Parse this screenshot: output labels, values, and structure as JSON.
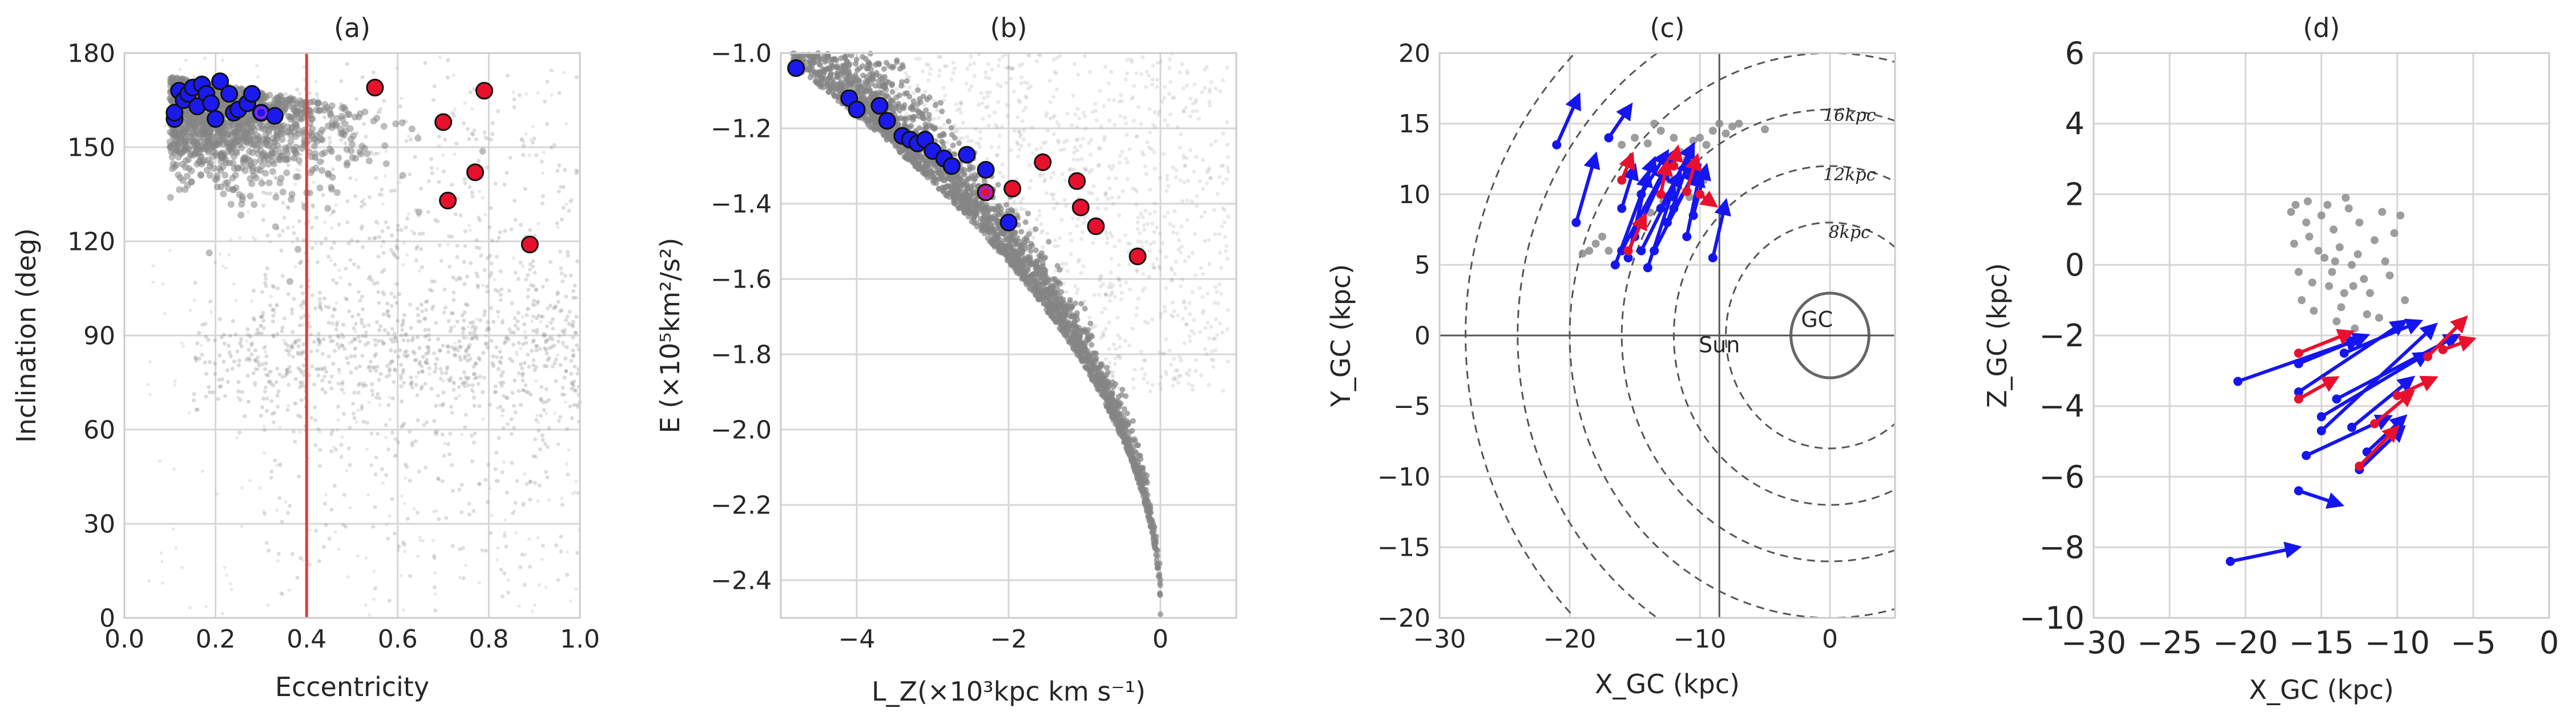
{
  "figure": {
    "description_colors": {
      "background": "#ffffff",
      "grid": "#d3d3d3",
      "cloud": "#808080",
      "blue": "#1515f0",
      "red": "#dc143c",
      "vline": "#e03c3c"
    }
  },
  "chart_data": [
    {
      "id": "a",
      "type": "scatter",
      "title": "(a)",
      "xlabel": "Eccentricity",
      "ylabel": "Inclination (deg)",
      "xlim": [
        0.0,
        1.0
      ],
      "ylim": [
        0,
        180
      ],
      "xticks": [
        "0.0",
        "0.2",
        "0.4",
        "0.6",
        "0.8",
        "1.0"
      ],
      "xtick_values": [
        0.0,
        0.2,
        0.4,
        0.6,
        0.8,
        1.0
      ],
      "yticks": [
        "0",
        "30",
        "60",
        "90",
        "120",
        "150",
        "180"
      ],
      "ytick_values": [
        0,
        30,
        60,
        90,
        120,
        150,
        180
      ],
      "vline": 0.4,
      "series": [
        {
          "name": "blue",
          "points": [
            [
              0.11,
              159
            ],
            [
              0.11,
              161
            ],
            [
              0.12,
              168
            ],
            [
              0.13,
              165
            ],
            [
              0.14,
              167
            ],
            [
              0.15,
              169
            ],
            [
              0.16,
              163
            ],
            [
              0.17,
              170
            ],
            [
              0.18,
              167
            ],
            [
              0.19,
              164
            ],
            [
              0.2,
              159
            ],
            [
              0.21,
              171
            ],
            [
              0.23,
              167
            ],
            [
              0.24,
              161
            ],
            [
              0.25,
              162
            ],
            [
              0.27,
              164
            ],
            [
              0.28,
              167
            ],
            [
              0.3,
              161
            ],
            [
              0.33,
              160
            ]
          ]
        },
        {
          "name": "red",
          "points": [
            [
              0.55,
              169
            ],
            [
              0.7,
              158
            ],
            [
              0.71,
              133
            ],
            [
              0.77,
              142
            ],
            [
              0.79,
              168
            ],
            [
              0.89,
              119
            ]
          ]
        },
        {
          "name": "purple",
          "points": [
            [
              0.3,
              161
            ]
          ]
        }
      ]
    },
    {
      "id": "b",
      "type": "scatter",
      "title": "(b)",
      "xlabel": "L_Z(×10³kpc km s⁻¹)",
      "ylabel": "E (×10⁵km²/s²)",
      "xlim": [
        -5,
        1
      ],
      "ylim": [
        -2.5,
        -1.0
      ],
      "xticks": [
        "−4",
        "−2",
        "0"
      ],
      "xtick_values": [
        -4,
        -2,
        0
      ],
      "yticks": [
        "−2.4",
        "−2.2",
        "−2.0",
        "−1.8",
        "−1.6",
        "−1.4",
        "−1.2",
        "−1.0"
      ],
      "ytick_values": [
        -2.4,
        -2.2,
        -2.0,
        -1.8,
        -1.6,
        -1.4,
        -1.2,
        -1.0
      ],
      "series": [
        {
          "name": "blue",
          "points": [
            [
              -4.8,
              -1.04
            ],
            [
              -4.1,
              -1.12
            ],
            [
              -4.0,
              -1.15
            ],
            [
              -3.7,
              -1.14
            ],
            [
              -3.6,
              -1.18
            ],
            [
              -3.4,
              -1.22
            ],
            [
              -3.3,
              -1.23
            ],
            [
              -3.2,
              -1.24
            ],
            [
              -3.1,
              -1.23
            ],
            [
              -3.0,
              -1.26
            ],
            [
              -2.85,
              -1.28
            ],
            [
              -2.75,
              -1.3
            ],
            [
              -2.55,
              -1.27
            ],
            [
              -2.3,
              -1.31
            ],
            [
              -2.0,
              -1.45
            ]
          ]
        },
        {
          "name": "red",
          "points": [
            [
              -2.3,
              -1.37
            ],
            [
              -1.95,
              -1.36
            ],
            [
              -1.55,
              -1.29
            ],
            [
              -1.1,
              -1.34
            ],
            [
              -1.05,
              -1.41
            ],
            [
              -0.85,
              -1.46
            ],
            [
              -0.3,
              -1.54
            ]
          ]
        },
        {
          "name": "purple",
          "points": [
            [
              -2.3,
              -1.37
            ]
          ]
        }
      ]
    },
    {
      "id": "c",
      "type": "scatter",
      "title": "(c)",
      "xlabel": "X_GC (kpc)",
      "ylabel": "Y_GC (kpc)",
      "xlim": [
        -30,
        5
      ],
      "ylim": [
        -20,
        20
      ],
      "xticks": [
        "−30",
        "−20",
        "−10",
        "0"
      ],
      "xtick_values": [
        -30,
        -20,
        -10,
        0
      ],
      "yticks": [
        "−20",
        "−15",
        "−10",
        "−5",
        "0",
        "5",
        "10",
        "15",
        "20"
      ],
      "ytick_values": [
        -20,
        -15,
        -10,
        -5,
        0,
        5,
        10,
        15,
        20
      ],
      "circles_kpc": [
        8,
        12,
        16,
        20,
        24,
        28
      ],
      "circle_labels": [
        "16kpc",
        "12kpc",
        "8kpc"
      ],
      "circle_label_positions": [
        [
          1.5,
          15.2
        ],
        [
          1.5,
          11
        ],
        [
          1.5,
          6.9
        ]
      ],
      "sun_label": "Sun",
      "sun_x": -8.5,
      "gc_label": "GC",
      "gc_radius": 3,
      "blue_arrows": [
        [
          -21,
          13.5,
          -19.3,
          17
        ],
        [
          -19.5,
          8,
          -18,
          12.8
        ],
        [
          -17,
          14,
          -15.3,
          16.3
        ],
        [
          -16.5,
          5,
          -13.5,
          12.5
        ],
        [
          -16,
          6,
          -12,
          13
        ],
        [
          -15.5,
          5.5,
          -14,
          11.5
        ],
        [
          -15,
          7,
          -12.5,
          12
        ],
        [
          -14.5,
          6,
          -11.5,
          11.5
        ],
        [
          -14,
          4.8,
          -12,
          10.5
        ],
        [
          -13.5,
          6,
          -10.3,
          11.8
        ],
        [
          -13,
          9,
          -10.5,
          13.5
        ],
        [
          -12.5,
          8,
          -10.8,
          12.5
        ],
        [
          -12,
          9,
          -10,
          12
        ],
        [
          -11,
          7,
          -10,
          11.5
        ],
        [
          -10.5,
          8.5,
          -9.5,
          12
        ],
        [
          -9,
          5.5,
          -8,
          9.5
        ],
        [
          -16,
          9,
          -15,
          12
        ],
        [
          -14.5,
          10,
          -12.5,
          13
        ]
      ],
      "red_arrows": [
        [
          -15.5,
          6,
          -14.2,
          8.5
        ],
        [
          -16,
          11,
          -15.2,
          12.8
        ],
        [
          -13,
          10,
          -12.5,
          12.3
        ],
        [
          -12,
          12,
          -11.7,
          13.3
        ],
        [
          -10,
          10,
          -8.8,
          9.2
        ],
        [
          -11,
          10.2,
          -10.2,
          12.7
        ]
      ],
      "gray_points": [
        [
          -19,
          5.8
        ],
        [
          -18.5,
          6
        ],
        [
          -18,
          6.5
        ],
        [
          -17.5,
          7
        ],
        [
          -17,
          6
        ],
        [
          -16,
          13.5
        ],
        [
          -15,
          14
        ],
        [
          -14,
          13.6
        ],
        [
          -13.5,
          15
        ],
        [
          -13,
          14.5
        ],
        [
          -12,
          14
        ],
        [
          -11.5,
          13
        ],
        [
          -11,
          12.5
        ],
        [
          -10.5,
          13.8
        ],
        [
          -10,
          14
        ],
        [
          -9.5,
          13.5
        ],
        [
          -9,
          14.5
        ],
        [
          -8.5,
          15
        ],
        [
          -8,
          14.3
        ],
        [
          -7.5,
          14.8
        ],
        [
          -7,
          15
        ],
        [
          -5,
          14.6
        ],
        [
          -14.5,
          9
        ],
        [
          -13.8,
          8.7
        ],
        [
          -12.8,
          9.5
        ],
        [
          -12.3,
          11
        ],
        [
          -11.7,
          10.5
        ],
        [
          -10.8,
          9.8
        ],
        [
          -9.7,
          11
        ]
      ]
    },
    {
      "id": "d",
      "type": "scatter",
      "title": "(d)",
      "xlabel": "X_GC (kpc)",
      "ylabel": "Z_GC (kpc)",
      "xlim": [
        -30,
        0
      ],
      "ylim": [
        -10,
        6
      ],
      "xticks": [
        "−30",
        "−25",
        "−20",
        "−15",
        "−10",
        "−5",
        "0"
      ],
      "xtick_values": [
        -30,
        -25,
        -20,
        -15,
        -10,
        -5,
        0
      ],
      "yticks": [
        "−10",
        "−8",
        "−6",
        "−4",
        "−2",
        "0",
        "2",
        "4",
        "6"
      ],
      "ytick_values": [
        -10,
        -8,
        -6,
        -4,
        -2,
        0,
        2,
        4,
        6
      ],
      "blue_arrows": [
        [
          -21,
          -8.4,
          -16.5,
          -8
        ],
        [
          -16.5,
          -6.4,
          -13.7,
          -6.8
        ],
        [
          -20.5,
          -3.3,
          -12.5,
          -2.1
        ],
        [
          -16.5,
          -3.6,
          -9.5,
          -1.6
        ],
        [
          -15,
          -4.7,
          -7.5,
          -1.7
        ],
        [
          -16,
          -5.4,
          -10.5,
          -4.3
        ],
        [
          -15,
          -4.3,
          -8,
          -2.5
        ],
        [
          -14,
          -3.8,
          -6,
          -2
        ],
        [
          -13,
          -4.6,
          -9,
          -3.2
        ],
        [
          -12,
          -5.3,
          -9.5,
          -4.3
        ],
        [
          -16.5,
          -2.8,
          -12,
          -2
        ],
        [
          -13.5,
          -2.5,
          -8.5,
          -1.6
        ],
        [
          -12.5,
          -5.8,
          -9.6,
          -4.6
        ]
      ],
      "red_arrows": [
        [
          -16.5,
          -2.5,
          -13,
          -1.9
        ],
        [
          -16.5,
          -3.8,
          -14,
          -3.2
        ],
        [
          -12.5,
          -5.7,
          -10,
          -4.6
        ],
        [
          -11.5,
          -4.5,
          -9,
          -3.6
        ],
        [
          -8,
          -2.6,
          -5.5,
          -1.5
        ],
        [
          -7,
          -2.4,
          -5,
          -2.1
        ],
        [
          -10,
          -3.7,
          -7.5,
          -3.2
        ]
      ],
      "gray_points": [
        [
          -17,
          1.5
        ],
        [
          -16.7,
          1.7
        ],
        [
          -16.5,
          -0.2
        ],
        [
          -16,
          1.2
        ],
        [
          -15.8,
          0.8
        ],
        [
          -15.5,
          -1.3
        ],
        [
          -15,
          1.4
        ],
        [
          -14.8,
          0.2
        ],
        [
          -14.5,
          -0.6
        ],
        [
          -14.2,
          1
        ],
        [
          -14,
          -1.6
        ],
        [
          -13.8,
          0.5
        ],
        [
          -13.5,
          -0.8
        ],
        [
          -13.2,
          1.6
        ],
        [
          -13,
          0
        ],
        [
          -12.8,
          -1.8
        ],
        [
          -12.5,
          1.2
        ],
        [
          -12.2,
          -0.4
        ],
        [
          -12,
          -1.4
        ],
        [
          -11.5,
          0.7
        ],
        [
          -11,
          1.5
        ],
        [
          -10.5,
          -0.3
        ],
        [
          -10.2,
          0.9
        ],
        [
          -9.8,
          1.4
        ],
        [
          -9.5,
          -1
        ],
        [
          -16.3,
          -1
        ],
        [
          -15.2,
          0.4
        ],
        [
          -14.3,
          -0.2
        ],
        [
          -13.4,
          1.9
        ],
        [
          -12.6,
          0.3
        ],
        [
          -11.8,
          -0.8
        ],
        [
          -11.2,
          -1.5
        ],
        [
          -10.8,
          0.1
        ],
        [
          -15.9,
          1.8
        ],
        [
          -14.6,
          1.7
        ],
        [
          -13.7,
          -1.2
        ],
        [
          -12.9,
          -0.6
        ],
        [
          -16.8,
          0.6
        ],
        [
          -15.6,
          -0.5
        ],
        [
          -14.1,
          0.1
        ]
      ]
    }
  ]
}
